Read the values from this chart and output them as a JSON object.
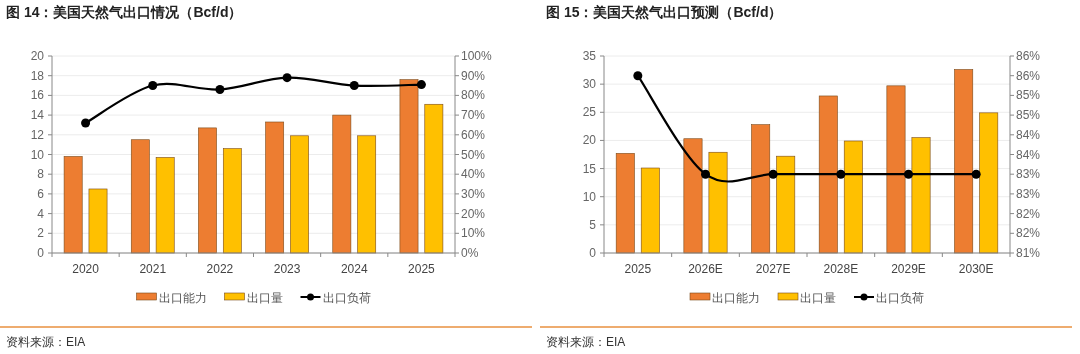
{
  "chart_data": [
    {
      "type": "bar",
      "title": "图 14：美国天然气出口情况（Bcf/d）",
      "categories": [
        "2020",
        "2021",
        "2022",
        "2023",
        "2024",
        "2025"
      ],
      "series": [
        {
          "name": "出口能力",
          "color": "#ed7d31",
          "values": [
            9.8,
            11.5,
            12.7,
            13.3,
            14.0,
            17.6
          ]
        },
        {
          "name": "出口量",
          "color": "#ffc000",
          "values": [
            6.5,
            9.7,
            10.6,
            11.9,
            11.9,
            15.1
          ]
        },
        {
          "name": "出口负荷",
          "color": "#000000",
          "type": "line",
          "axis": "y2",
          "values": [
            66,
            85,
            83,
            89,
            85,
            85.5
          ]
        }
      ],
      "ylim": [
        0,
        20
      ],
      "yticks": [
        0,
        2,
        4,
        6,
        8,
        10,
        12,
        14,
        16,
        18,
        20
      ],
      "y2lim": [
        0,
        100
      ],
      "y2ticks": [
        {
          "value": 0,
          "label": "0%"
        },
        {
          "value": 10,
          "label": "10%"
        },
        {
          "value": 20,
          "label": "20%"
        },
        {
          "value": 30,
          "label": "30%"
        },
        {
          "value": 40,
          "label": "40%"
        },
        {
          "value": 50,
          "label": "50%"
        },
        {
          "value": 60,
          "label": "60%"
        },
        {
          "value": 70,
          "label": "70%"
        },
        {
          "value": 80,
          "label": "80%"
        },
        {
          "value": 90,
          "label": "90%"
        },
        {
          "value": 100,
          "label": "100%"
        }
      ],
      "grid": "y",
      "legend": "bottom",
      "marker": "circle",
      "annotations": [
        "资料来源：EIA"
      ]
    },
    {
      "type": "bar",
      "title": "图 15：美国天然气出口预测（Bcf/d）",
      "categories": [
        "2025",
        "2026E",
        "2027E",
        "2028E",
        "2029E",
        "2030E"
      ],
      "series": [
        {
          "name": "出口能力",
          "color": "#ed7d31",
          "values": [
            17.7,
            20.3,
            22.8,
            27.9,
            29.7,
            32.6
          ]
        },
        {
          "name": "出口量",
          "color": "#ffc000",
          "values": [
            15.1,
            17.9,
            17.2,
            19.9,
            20.5,
            24.9
          ]
        },
        {
          "name": "出口负荷",
          "color": "#000000",
          "type": "line",
          "axis": "y2",
          "values": [
            85.5,
            83,
            83,
            83,
            83,
            83
          ]
        }
      ],
      "ylim": [
        0,
        35
      ],
      "yticks": [
        0,
        5,
        10,
        15,
        20,
        25,
        30,
        35
      ],
      "y2lim": [
        81,
        86
      ],
      "y2ticks": [
        {
          "value": 81,
          "label": "81%"
        },
        {
          "value": 81.5,
          "label": "82%"
        },
        {
          "value": 82,
          "label": "82%"
        },
        {
          "value": 82.5,
          "label": "83%"
        },
        {
          "value": 83,
          "label": "83%"
        },
        {
          "value": 83.5,
          "label": "84%"
        },
        {
          "value": 84,
          "label": "84%"
        },
        {
          "value": 84.5,
          "label": "85%"
        },
        {
          "value": 85,
          "label": "85%"
        },
        {
          "value": 85.5,
          "label": "86%"
        },
        {
          "value": 86,
          "label": "86%"
        }
      ],
      "grid": "y",
      "legend": "bottom",
      "marker": "circle",
      "annotations": [
        "资料来源：EIA"
      ]
    }
  ]
}
